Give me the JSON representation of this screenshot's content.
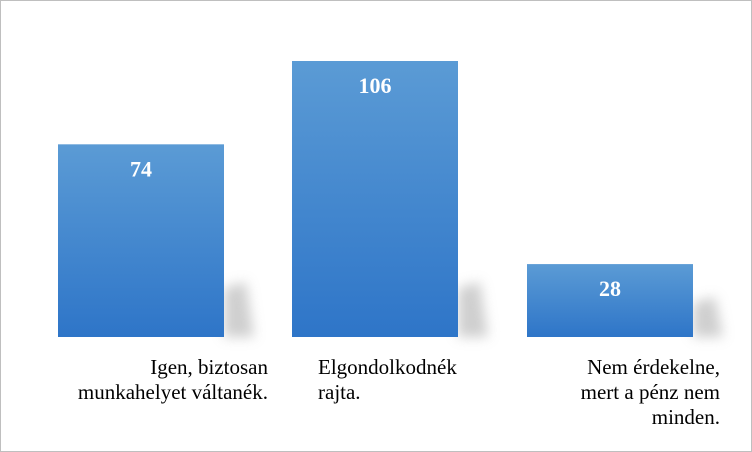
{
  "chart_data": {
    "type": "bar",
    "title": "",
    "xlabel": "",
    "ylabel": "",
    "categories": [
      "Igen, biztosan\nmunkahelyet váltanék.",
      "Elgondolkodnék\nrajta.",
      "Nem érdekelne,\nmert a pénz nem\nminden."
    ],
    "values": [
      74,
      106,
      28
    ],
    "data_labels": [
      "74",
      "106",
      "28"
    ],
    "ylim": [
      0,
      106
    ],
    "grid": false,
    "legend": "none",
    "colors": {
      "bar_top": "#5b9bd5",
      "bar_bottom": "#2e75c8",
      "shadow": "#bfbfbf",
      "label": "#ffffff"
    }
  }
}
